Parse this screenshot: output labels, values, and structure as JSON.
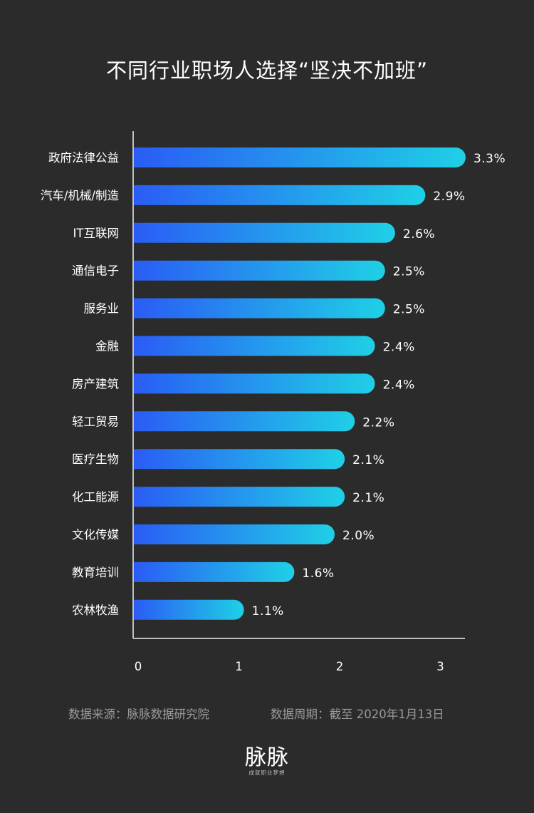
{
  "chart_data": {
    "type": "bar",
    "orientation": "horizontal",
    "title": "不同行业职场人选择“坚决不加班”",
    "categories": [
      "政府法律公益",
      "汽车/机械/制造",
      "IT互联网",
      "通信电子",
      "服务业",
      "金融",
      "房产建筑",
      "轻工贸易",
      "医疗生物",
      "化工能源",
      "文化传媒",
      "教育培训",
      "农林牧渔"
    ],
    "values": [
      3.3,
      2.9,
      2.6,
      2.5,
      2.5,
      2.4,
      2.4,
      2.2,
      2.1,
      2.1,
      2.0,
      1.6,
      1.1
    ],
    "value_labels": [
      "3.3%",
      "2.9%",
      "2.6%",
      "2.5%",
      "2.5%",
      "2.4%",
      "2.4%",
      "2.2%",
      "2.1%",
      "2.1%",
      "2.0%",
      "1.6%",
      "1.1%"
    ],
    "x_ticks": [
      0,
      1,
      2,
      3
    ],
    "xlim": [
      0,
      3.3
    ],
    "grid": false,
    "bar_gradient": [
      "#2a5cf5",
      "#1fd0e6"
    ]
  },
  "footer": {
    "source": "数据来源：脉脉数据研究院",
    "period": "数据周期：截至 2020年1月13日"
  },
  "logo": {
    "mark": "脉脉",
    "tagline": "成就职业梦想"
  },
  "colors": {
    "background": "#2b2b2b",
    "axis": "#bfbfbf",
    "text": "#ffffff",
    "footer_text": "#9a9a9a"
  }
}
